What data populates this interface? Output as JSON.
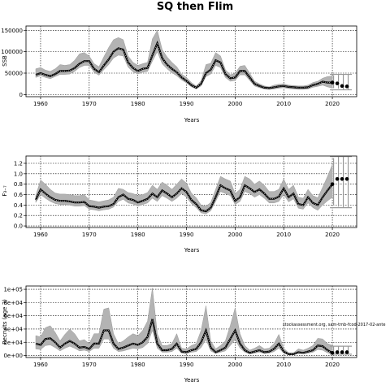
{
  "figure": {
    "title": "SQ then Flim",
    "note": "stockassessment.org, sam-tmb-fcod-2017-02-ante"
  },
  "chart_data": [
    {
      "type": "line",
      "ylabel": "SSB",
      "xlabel": "Years",
      "xlim": [
        1957,
        2025
      ],
      "ylim": [
        -5000,
        160000
      ],
      "x_ticks": [
        1960,
        1970,
        1980,
        1990,
        2000,
        2010,
        2020
      ],
      "y_ticks": [
        0,
        50000,
        100000,
        150000
      ],
      "y_tick_labels": [
        "0",
        "50000",
        "100000",
        "150000"
      ],
      "grid": true,
      "series": [
        {
          "x": [
            1959,
            1960,
            1961,
            1962,
            1963,
            1964,
            1965,
            1966,
            1967,
            1968,
            1969,
            1970,
            1971,
            1972,
            1973,
            1974,
            1975,
            1976,
            1977,
            1978,
            1979,
            1980,
            1981,
            1982,
            1983,
            1984,
            1985,
            1986,
            1987,
            1988,
            1989,
            1990,
            1991,
            1992,
            1993,
            1994,
            1995,
            1996,
            1997,
            1998,
            1999,
            2000,
            2001,
            2002,
            2003,
            2004,
            2005,
            2006,
            2007,
            2008,
            2009,
            2010,
            2011,
            2012,
            2013,
            2014,
            2015,
            2016,
            2017,
            2018,
            2019,
            2020
          ],
          "values": [
            46000,
            50000,
            46000,
            43000,
            48000,
            55000,
            55000,
            56000,
            62000,
            72000,
            78000,
            78000,
            60000,
            52000,
            68000,
            82000,
            100000,
            108000,
            105000,
            75000,
            62000,
            55000,
            60000,
            62000,
            92000,
            120000,
            85000,
            70000,
            60000,
            52000,
            40000,
            32000,
            22000,
            16000,
            25000,
            50000,
            58000,
            80000,
            75000,
            48000,
            38000,
            40000,
            55000,
            55000,
            40000,
            25000,
            20000,
            16000,
            15000,
            17000,
            19000,
            20000,
            18000,
            17000,
            16000,
            16000,
            17000,
            22000,
            25000,
            30000,
            28000,
            28000
          ],
          "lower": [
            40000,
            44000,
            40000,
            37000,
            42000,
            47000,
            47000,
            48000,
            54000,
            63000,
            68000,
            68000,
            52000,
            45000,
            58000,
            70000,
            85000,
            92000,
            90000,
            64000,
            53000,
            48000,
            52000,
            54000,
            78000,
            100000,
            72000,
            60000,
            51000,
            44000,
            34000,
            27000,
            18000,
            13000,
            20000,
            42000,
            48000,
            68000,
            63000,
            40000,
            31000,
            33000,
            46000,
            46000,
            33000,
            20000,
            16000,
            13000,
            12000,
            13000,
            15000,
            16000,
            14000,
            13000,
            12000,
            12000,
            13000,
            17000,
            19000,
            22000,
            18000,
            15000
          ],
          "upper": [
            60000,
            63000,
            57000,
            54000,
            60000,
            70000,
            68000,
            70000,
            80000,
            95000,
            98000,
            90000,
            72000,
            65000,
            88000,
            110000,
            128000,
            133000,
            128000,
            90000,
            75000,
            68000,
            72000,
            75000,
            130000,
            150000,
            105000,
            88000,
            75000,
            65000,
            48000,
            40000,
            28000,
            20000,
            32000,
            70000,
            73000,
            98000,
            90000,
            58000,
            46000,
            50000,
            66000,
            68000,
            50000,
            31000,
            25000,
            20000,
            18000,
            22000,
            24000,
            25000,
            22000,
            21000,
            20000,
            20000,
            22000,
            28000,
            31000,
            38000,
            42000,
            43000
          ]
        }
      ],
      "forecast": {
        "x": [
          2020,
          2021,
          2022,
          2023
        ],
        "values": [
          28000,
          26000,
          20000,
          19000
        ],
        "lower": [
          15000,
          14000,
          12000,
          11000
        ],
        "upper": [
          45000,
          46000,
          47000,
          47000
        ]
      }
    },
    {
      "type": "line",
      "ylabel": "F₃₋₇",
      "xlabel": "Years",
      "xlim": [
        1957,
        2025
      ],
      "ylim": [
        -0.03,
        1.34
      ],
      "x_ticks": [
        1960,
        1970,
        1980,
        1990,
        2000,
        2010,
        2020
      ],
      "y_ticks": [
        0,
        0.2,
        0.4,
        0.6,
        0.8,
        1.0,
        1.2
      ],
      "y_tick_labels": [
        "0.0",
        "0.2",
        "0.4",
        "0.6",
        "0.8",
        "1.0",
        "1.2"
      ],
      "grid": true,
      "series": [
        {
          "x": [
            1959,
            1960,
            1961,
            1962,
            1963,
            1964,
            1965,
            1966,
            1967,
            1968,
            1969,
            1970,
            1971,
            1972,
            1973,
            1974,
            1975,
            1976,
            1977,
            1978,
            1979,
            1980,
            1981,
            1982,
            1983,
            1984,
            1985,
            1986,
            1987,
            1988,
            1989,
            1990,
            1991,
            1992,
            1993,
            1994,
            1995,
            1996,
            1997,
            1998,
            1999,
            2000,
            2001,
            2002,
            2003,
            2004,
            2005,
            2006,
            2007,
            2008,
            2009,
            2010,
            2011,
            2012,
            2013,
            2014,
            2015,
            2016,
            2017,
            2018,
            2019,
            2020
          ],
          "values": [
            0.5,
            0.7,
            0.62,
            0.55,
            0.5,
            0.48,
            0.48,
            0.47,
            0.45,
            0.45,
            0.46,
            0.38,
            0.37,
            0.35,
            0.37,
            0.38,
            0.42,
            0.55,
            0.6,
            0.52,
            0.5,
            0.45,
            0.48,
            0.52,
            0.62,
            0.55,
            0.68,
            0.62,
            0.55,
            0.62,
            0.72,
            0.65,
            0.5,
            0.42,
            0.3,
            0.28,
            0.35,
            0.55,
            0.78,
            0.72,
            0.68,
            0.48,
            0.55,
            0.78,
            0.72,
            0.65,
            0.7,
            0.62,
            0.52,
            0.52,
            0.56,
            0.72,
            0.55,
            0.62,
            0.42,
            0.4,
            0.55,
            0.44,
            0.4,
            0.55,
            0.68,
            0.8
          ],
          "lower": [
            0.45,
            0.6,
            0.53,
            0.47,
            0.43,
            0.41,
            0.41,
            0.4,
            0.38,
            0.38,
            0.39,
            0.32,
            0.31,
            0.29,
            0.31,
            0.32,
            0.36,
            0.47,
            0.51,
            0.44,
            0.42,
            0.38,
            0.41,
            0.44,
            0.53,
            0.47,
            0.58,
            0.53,
            0.47,
            0.53,
            0.62,
            0.55,
            0.43,
            0.35,
            0.25,
            0.23,
            0.29,
            0.47,
            0.66,
            0.62,
            0.58,
            0.41,
            0.47,
            0.66,
            0.62,
            0.55,
            0.6,
            0.53,
            0.44,
            0.44,
            0.47,
            0.6,
            0.46,
            0.52,
            0.34,
            0.32,
            0.44,
            0.35,
            0.3,
            0.4,
            0.48,
            0.55
          ],
          "upper": [
            0.58,
            0.88,
            0.8,
            0.7,
            0.63,
            0.61,
            0.61,
            0.6,
            0.58,
            0.58,
            0.6,
            0.5,
            0.48,
            0.46,
            0.48,
            0.5,
            0.55,
            0.72,
            0.7,
            0.64,
            0.62,
            0.58,
            0.6,
            0.64,
            0.78,
            0.7,
            0.84,
            0.78,
            0.7,
            0.8,
            0.9,
            0.82,
            0.63,
            0.54,
            0.4,
            0.38,
            0.45,
            0.7,
            0.95,
            0.9,
            0.86,
            0.62,
            0.7,
            0.95,
            0.9,
            0.8,
            0.86,
            0.78,
            0.66,
            0.66,
            0.7,
            0.9,
            0.7,
            0.78,
            0.55,
            0.53,
            0.7,
            0.58,
            0.54,
            0.74,
            0.95,
            1.18
          ]
        }
      ],
      "forecast": {
        "x": [
          2020,
          2021,
          2022,
          2023
        ],
        "values": [
          0.8,
          0.9,
          0.9,
          0.9
        ],
        "lower": [
          0.4,
          0.37,
          0.36,
          0.35
        ],
        "upper": [
          1.3,
          1.33,
          1.33,
          1.33
        ]
      }
    },
    {
      "type": "line",
      "ylabel": "Recruits (age 3)",
      "xlabel": "Years",
      "xlim": [
        1957,
        2025
      ],
      "ylim": [
        -3000,
        105000
      ],
      "x_ticks": [
        1960,
        1970,
        1980,
        1990,
        2000,
        2010,
        2020
      ],
      "y_ticks": [
        0,
        20000,
        40000,
        60000,
        80000,
        100000
      ],
      "y_tick_labels": [
        "0e+00",
        "2e+04",
        "4e+04",
        "6e+04",
        "8e+04",
        "1e+05"
      ],
      "grid": true,
      "series": [
        {
          "x": [
            1959,
            1960,
            1961,
            1962,
            1963,
            1964,
            1965,
            1966,
            1967,
            1968,
            1969,
            1970,
            1971,
            1972,
            1973,
            1974,
            1975,
            1976,
            1977,
            1978,
            1979,
            1980,
            1981,
            1982,
            1983,
            1984,
            1985,
            1986,
            1987,
            1988,
            1989,
            1990,
            1991,
            1992,
            1993,
            1994,
            1995,
            1996,
            1997,
            1998,
            1999,
            2000,
            2001,
            2002,
            2003,
            2004,
            2005,
            2006,
            2007,
            2008,
            2009,
            2010,
            2011,
            2012,
            2013,
            2014,
            2015,
            2016,
            2017,
            2018,
            2019,
            2020
          ],
          "values": [
            18000,
            16000,
            25000,
            26000,
            20000,
            12000,
            18000,
            22000,
            18000,
            12000,
            13000,
            10000,
            18000,
            18000,
            38000,
            38000,
            18000,
            10000,
            12000,
            15000,
            18000,
            16000,
            20000,
            28000,
            55000,
            18000,
            8000,
            8000,
            10000,
            18000,
            6000,
            5000,
            8000,
            10000,
            20000,
            38000,
            12000,
            5000,
            8000,
            12000,
            25000,
            38000,
            18000,
            8000,
            4000,
            6000,
            8000,
            5000,
            6000,
            10000,
            18000,
            6000,
            2000,
            2000,
            5000,
            4000,
            6000,
            8000,
            15000,
            14000,
            8000,
            4000
          ],
          "lower": [
            10000,
            9000,
            15000,
            16000,
            12000,
            7000,
            11000,
            14000,
            11000,
            7000,
            8000,
            6000,
            11000,
            11000,
            25000,
            25000,
            11000,
            6000,
            7000,
            9000,
            11000,
            10000,
            12000,
            18000,
            38000,
            11000,
            5000,
            5000,
            6000,
            11000,
            3500,
            3000,
            5000,
            6000,
            12000,
            24000,
            7000,
            3000,
            5000,
            7000,
            15000,
            24000,
            11000,
            5000,
            2500,
            3500,
            5000,
            3000,
            3500,
            6000,
            11000,
            3500,
            1000,
            1000,
            3000,
            2500,
            3500,
            5000,
            9000,
            8000,
            4000,
            1500
          ],
          "upper": [
            30000,
            28000,
            42000,
            45000,
            35000,
            22000,
            32000,
            40000,
            33000,
            22000,
            24000,
            18000,
            33000,
            33000,
            70000,
            72000,
            33000,
            18000,
            22000,
            28000,
            33000,
            30000,
            38000,
            52000,
            102000,
            33000,
            15000,
            15000,
            18000,
            33000,
            11000,
            10000,
            15000,
            18000,
            38000,
            75000,
            22000,
            10000,
            15000,
            22000,
            45000,
            72000,
            33000,
            15000,
            8000,
            11000,
            15000,
            10000,
            11000,
            18000,
            32000,
            11000,
            4000,
            4000,
            10000,
            8000,
            11000,
            15000,
            26000,
            25000,
            18000,
            15000
          ]
        }
      ],
      "forecast": {
        "x": [
          2020,
          2021,
          2022,
          2023
        ],
        "values": [
          4000,
          5000,
          5000,
          5000
        ],
        "lower": [
          1000,
          2000,
          2000,
          2000
        ],
        "upper": [
          14000,
          14000,
          14000,
          14000
        ]
      }
    }
  ]
}
